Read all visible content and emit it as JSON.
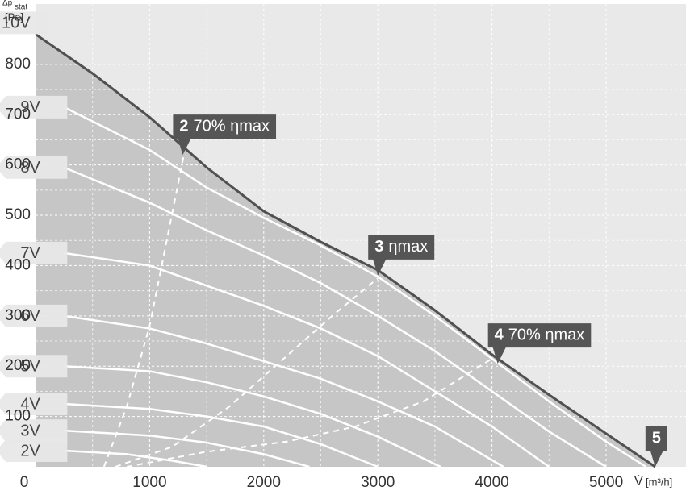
{
  "chart_data": {
    "type": "line",
    "y_label": "Δp",
    "y_label_sub": "stat",
    "y_unit": "[Pa]",
    "x_label": "V̇",
    "x_unit": "[m³/h]",
    "xlim": [
      0,
      5700
    ],
    "ylim": [
      0,
      920
    ],
    "xticks": [
      0,
      1000,
      2000,
      3000,
      4000,
      5000
    ],
    "yticks": [
      100,
      200,
      300,
      400,
      500,
      600,
      700,
      800
    ],
    "grid": true,
    "series": [
      {
        "name": "10V",
        "color": "#505050",
        "x": [
          0,
          500,
          1000,
          1500,
          2000,
          2500,
          3000,
          3500,
          4000,
          4500,
          5000,
          5430
        ],
        "values": [
          860,
          782,
          695,
          595,
          508,
          447,
          391,
          311,
          223,
          143,
          66,
          0
        ]
      },
      {
        "name": "9V",
        "color": "#ffffff",
        "x": [
          250,
          1000,
          1500,
          2000,
          2500,
          3000,
          3500,
          4000,
          4500,
          5000,
          5350
        ],
        "values": [
          715,
          630,
          555,
          495,
          440,
          378,
          300,
          215,
          130,
          50,
          0
        ]
      },
      {
        "name": "8V",
        "color": "#ffffff",
        "x": [
          250,
          1000,
          1500,
          2000,
          2500,
          3000,
          3500,
          4000,
          4500,
          5000
        ],
        "values": [
          595,
          525,
          470,
          420,
          365,
          300,
          230,
          150,
          70,
          0
        ]
      },
      {
        "name": "7V",
        "color": "#ffffff",
        "x": [
          250,
          1000,
          1500,
          2000,
          2500,
          3000,
          3500,
          4000,
          4500
        ],
        "values": [
          425,
          400,
          360,
          320,
          275,
          220,
          150,
          80,
          0
        ]
      },
      {
        "name": "6V",
        "color": "#ffffff",
        "x": [
          250,
          1000,
          1500,
          2000,
          2500,
          3000,
          3500,
          4100
        ],
        "values": [
          300,
          275,
          245,
          210,
          175,
          130,
          80,
          0
        ]
      },
      {
        "name": "5V",
        "color": "#ffffff",
        "x": [
          250,
          1000,
          1500,
          2000,
          2500,
          3000,
          3550
        ],
        "values": [
          200,
          190,
          168,
          140,
          105,
          60,
          0
        ]
      },
      {
        "name": "4V",
        "color": "#ffffff",
        "x": [
          250,
          1000,
          1500,
          2000,
          2500,
          3000
        ],
        "values": [
          125,
          115,
          100,
          80,
          45,
          0
        ]
      },
      {
        "name": "3V",
        "color": "#ffffff",
        "x": [
          250,
          1000,
          1500,
          2000,
          2400
        ],
        "values": [
          72,
          62,
          48,
          25,
          0
        ]
      },
      {
        "name": "2V",
        "color": "#ffffff",
        "x": [
          250,
          800,
          1200,
          1500
        ],
        "values": [
          32,
          25,
          12,
          0
        ]
      }
    ],
    "dashed_lines": [
      {
        "color": "#ffffff",
        "x": [
          600,
          800,
          1000,
          1150,
          1300
        ],
        "values": [
          0,
          120,
          280,
          450,
          620
        ]
      },
      {
        "color": "#ffffff",
        "x": [
          700,
          1200,
          1700,
          2200,
          2600,
          3000
        ],
        "values": [
          0,
          40,
          120,
          220,
          300,
          375
        ]
      },
      {
        "color": "#ffffff",
        "x": [
          800,
          1500,
          2200,
          2800,
          3400,
          4000
        ],
        "values": [
          0,
          30,
          50,
          80,
          130,
          215
        ]
      }
    ],
    "annotations": [
      {
        "number": "2",
        "text": "70% ηmax",
        "x": 1290,
        "y": 620
      },
      {
        "number": "3",
        "text": "ηmax",
        "x": 3000,
        "y": 380
      },
      {
        "number": "4",
        "text": "70% ηmax",
        "x": 4050,
        "y": 205
      },
      {
        "number": "5",
        "text": "",
        "x": 5430,
        "y": 0
      }
    ]
  }
}
